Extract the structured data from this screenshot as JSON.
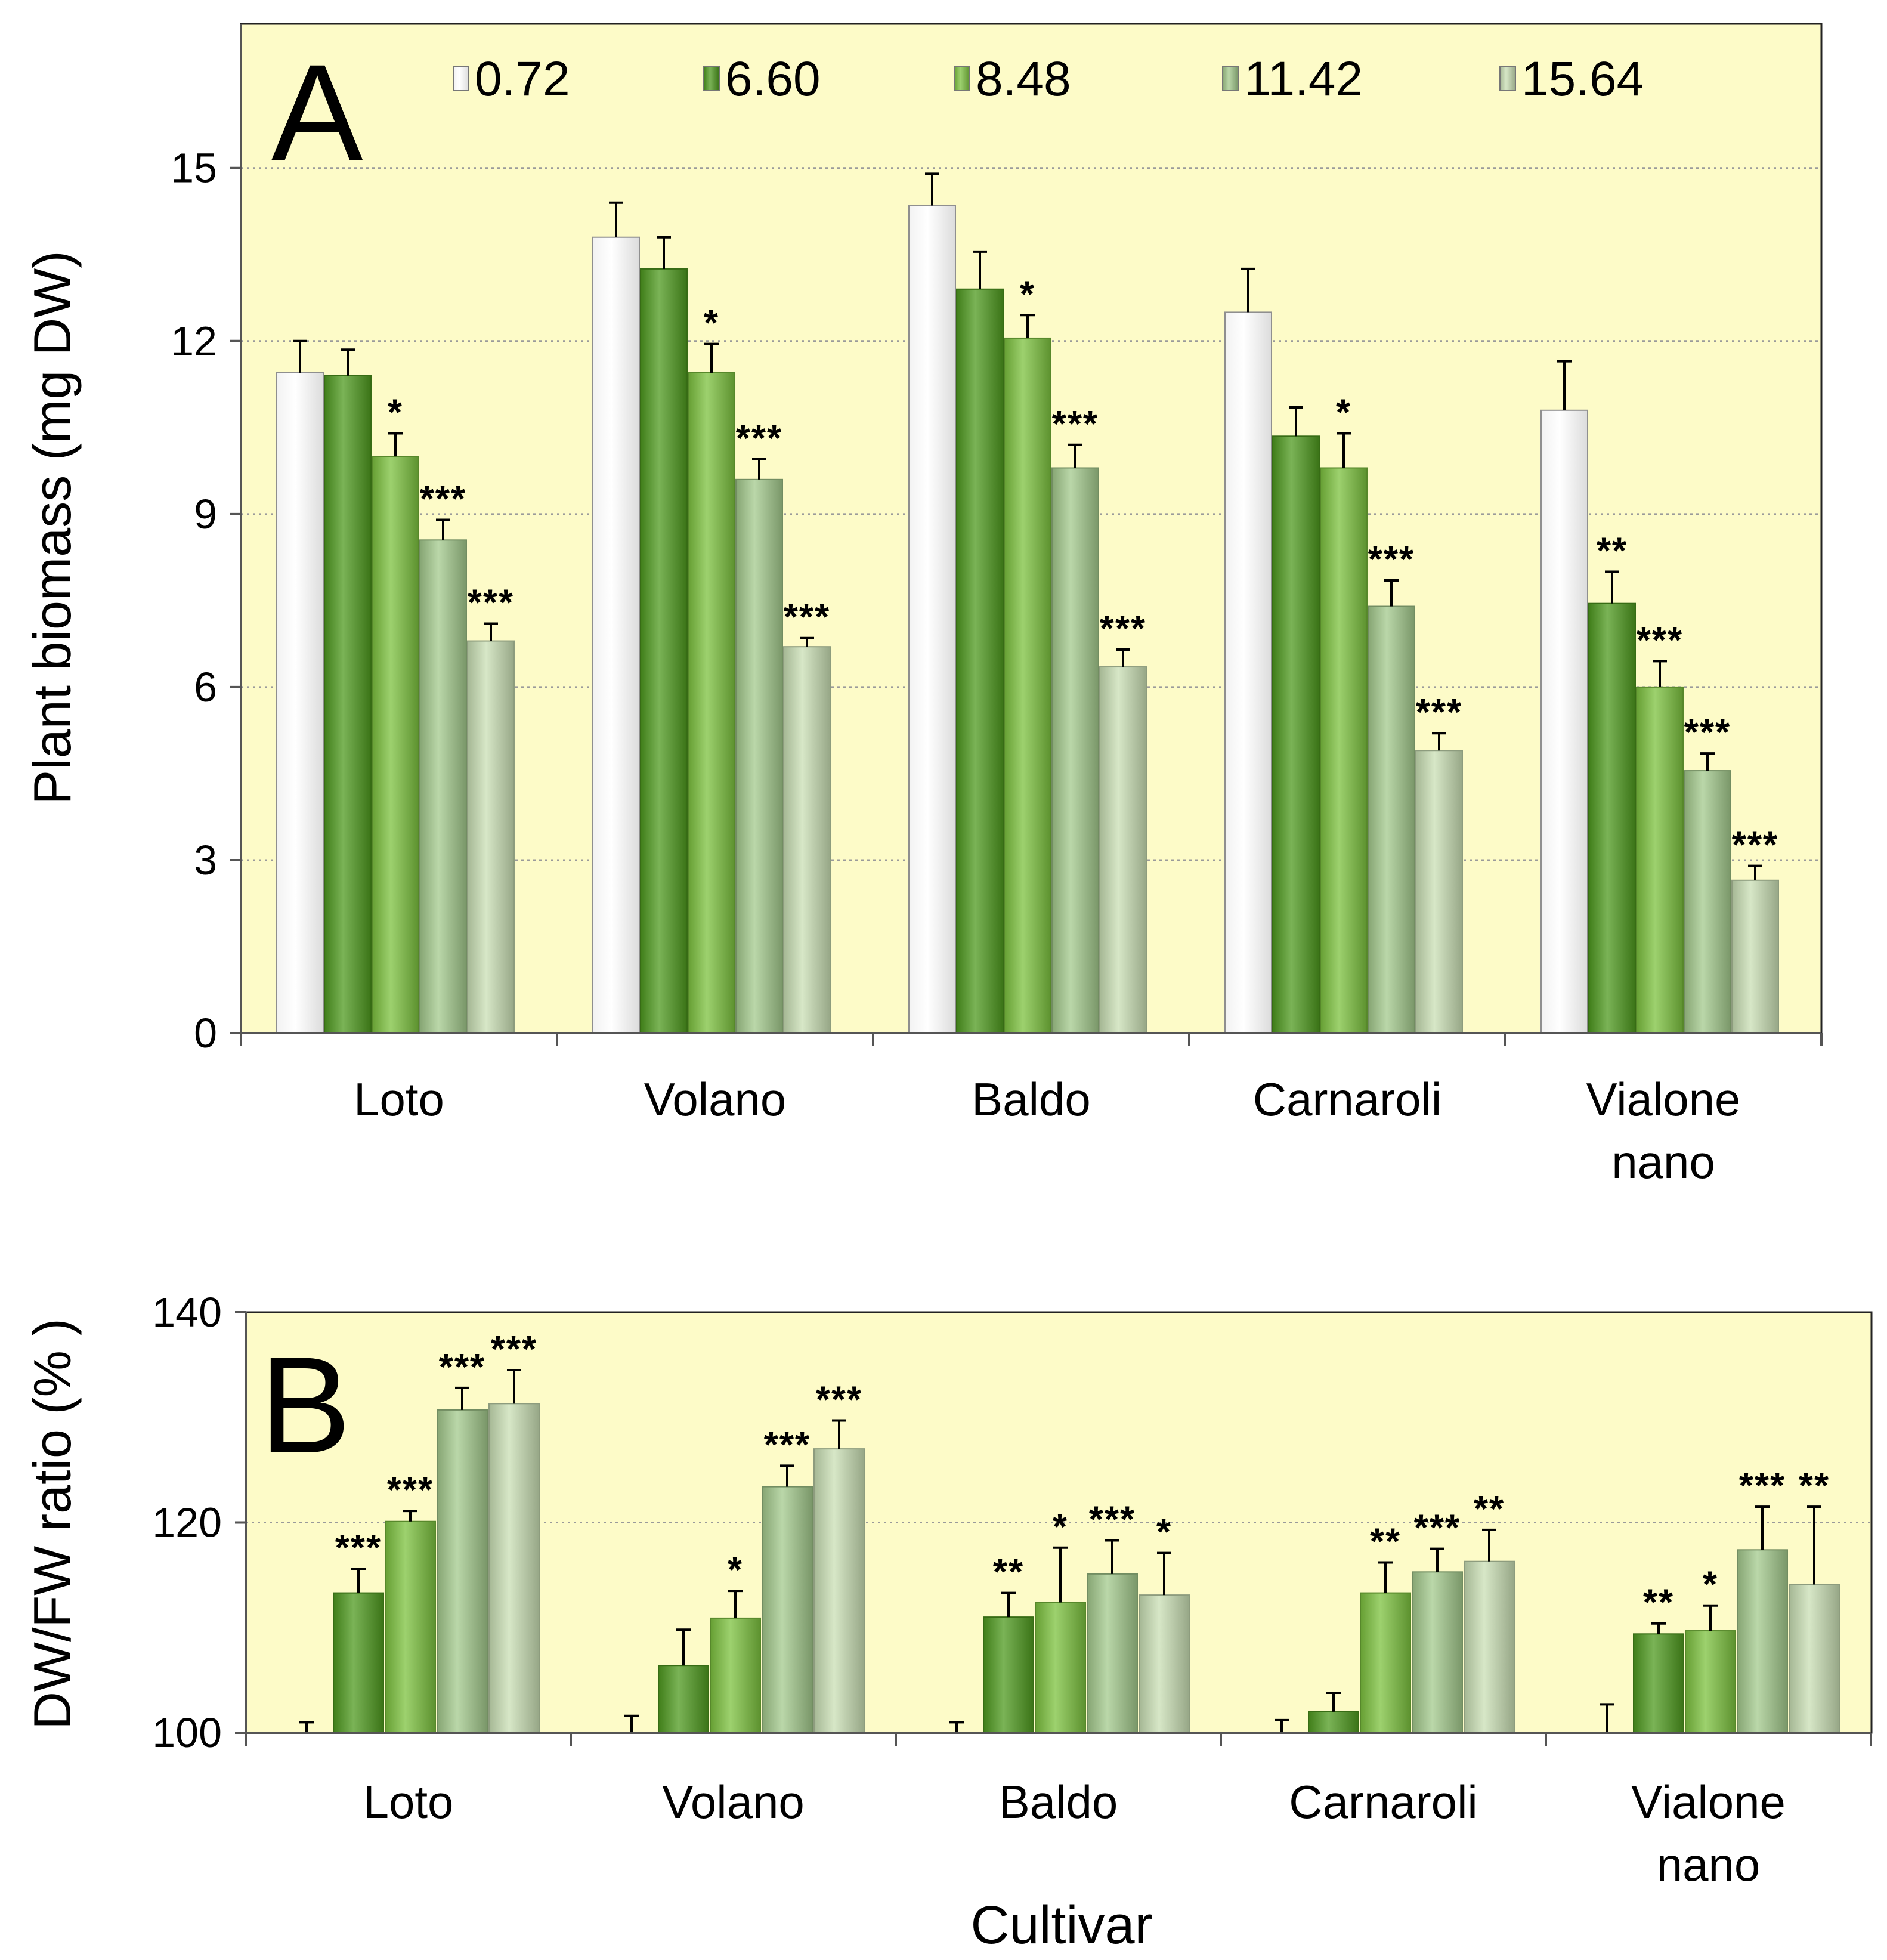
{
  "colors": {
    "panel_bg": "#FDFBC8",
    "c0_72": "#FFFFFF",
    "c6_60": "#4E9A1E",
    "c8_48": "#7CC23E",
    "c11_42": "#A3C98C",
    "c15_64": "#C9DFB4",
    "grid": "#9A9A9A",
    "axis": "#555555"
  },
  "legend": [
    "0.72",
    "6.60",
    "8.48",
    "11.42",
    "15.64"
  ],
  "chart_data": [
    {
      "type": "bar",
      "panel_label": "A",
      "categories": [
        "Loto",
        "Volano",
        "Baldo",
        "Carnaroli",
        "Vialone nano"
      ],
      "category_lines": [
        [
          "Loto"
        ],
        [
          "Volano"
        ],
        [
          "Baldo"
        ],
        [
          "Carnaroli"
        ],
        [
          "Vialone",
          "nano"
        ]
      ],
      "ylabel": "Plant biomass (mg DW)",
      "xlabel": "",
      "ylim": [
        0,
        17.5
      ],
      "yticks": [
        0,
        3,
        6,
        9,
        12,
        15
      ],
      "gridlines": [
        3,
        6,
        9,
        12,
        15
      ],
      "series": [
        {
          "name": "0.72",
          "values": [
            11.45,
            13.8,
            14.35,
            12.5,
            10.8
          ],
          "errors": [
            0.55,
            0.6,
            0.55,
            0.75,
            0.85
          ],
          "sig": [
            "",
            "",
            "",
            "",
            ""
          ]
        },
        {
          "name": "6.60",
          "values": [
            11.4,
            13.25,
            12.9,
            10.35,
            7.45
          ],
          "errors": [
            0.45,
            0.55,
            0.65,
            0.5,
            0.55
          ],
          "sig": [
            "",
            "",
            "",
            "",
            "**"
          ]
        },
        {
          "name": "8.48",
          "values": [
            10.0,
            11.45,
            12.05,
            9.8,
            6.0
          ],
          "errors": [
            0.4,
            0.5,
            0.4,
            0.6,
            0.45
          ],
          "sig": [
            "*",
            "*",
            "*",
            "*",
            "***"
          ]
        },
        {
          "name": "11.42",
          "values": [
            8.55,
            9.6,
            9.8,
            7.4,
            4.55
          ],
          "errors": [
            0.35,
            0.35,
            0.4,
            0.45,
            0.3
          ],
          "sig": [
            "***",
            "***",
            "***",
            "***",
            "***"
          ]
        },
        {
          "name": "15.64",
          "values": [
            6.8,
            6.7,
            6.35,
            4.9,
            2.65
          ],
          "errors": [
            0.3,
            0.15,
            0.3,
            0.3,
            0.25
          ],
          "sig": [
            "***",
            "***",
            "***",
            "***",
            "***"
          ]
        }
      ]
    },
    {
      "type": "bar",
      "panel_label": "B",
      "categories": [
        "Loto",
        "Volano",
        "Baldo",
        "Carnaroli",
        "Vialone nano"
      ],
      "category_lines": [
        [
          "Loto"
        ],
        [
          "Volano"
        ],
        [
          "Baldo"
        ],
        [
          "Carnaroli"
        ],
        [
          "Vialone",
          "nano"
        ]
      ],
      "ylabel": "DW/FW ratio (% )",
      "xlabel": "Cultivar",
      "ylim": [
        100,
        140
      ],
      "yticks": [
        100,
        120,
        140
      ],
      "gridlines": [
        120
      ],
      "series": [
        {
          "name": "0.72",
          "values": [
            100,
            100,
            100,
            100,
            100
          ],
          "errors": [
            1.0,
            1.6,
            1.0,
            1.2,
            2.7
          ],
          "sig": [
            "",
            "",
            "",
            "",
            ""
          ]
        },
        {
          "name": "6.60",
          "values": [
            113.3,
            106.4,
            111.0,
            102.0,
            109.4
          ],
          "errors": [
            2.3,
            3.4,
            2.3,
            1.8,
            1.0
          ],
          "sig": [
            "***",
            "",
            "**",
            "",
            "**"
          ]
        },
        {
          "name": "8.48",
          "values": [
            120.1,
            110.9,
            112.4,
            113.3,
            109.7
          ],
          "errors": [
            1.0,
            2.6,
            5.2,
            2.9,
            2.4
          ],
          "sig": [
            "***",
            "*",
            "*",
            "**",
            "*"
          ]
        },
        {
          "name": "11.42",
          "values": [
            130.7,
            123.4,
            115.1,
            115.3,
            117.4
          ],
          "errors": [
            2.1,
            2.0,
            3.2,
            2.2,
            4.1
          ],
          "sig": [
            "***",
            "***",
            "***",
            "***",
            "***"
          ]
        },
        {
          "name": "15.64",
          "values": [
            131.3,
            127.0,
            113.1,
            116.3,
            114.1
          ],
          "errors": [
            3.2,
            2.7,
            4.0,
            3.0,
            7.4
          ],
          "sig": [
            "***",
            "***",
            "*",
            "**",
            "**"
          ]
        }
      ]
    }
  ]
}
